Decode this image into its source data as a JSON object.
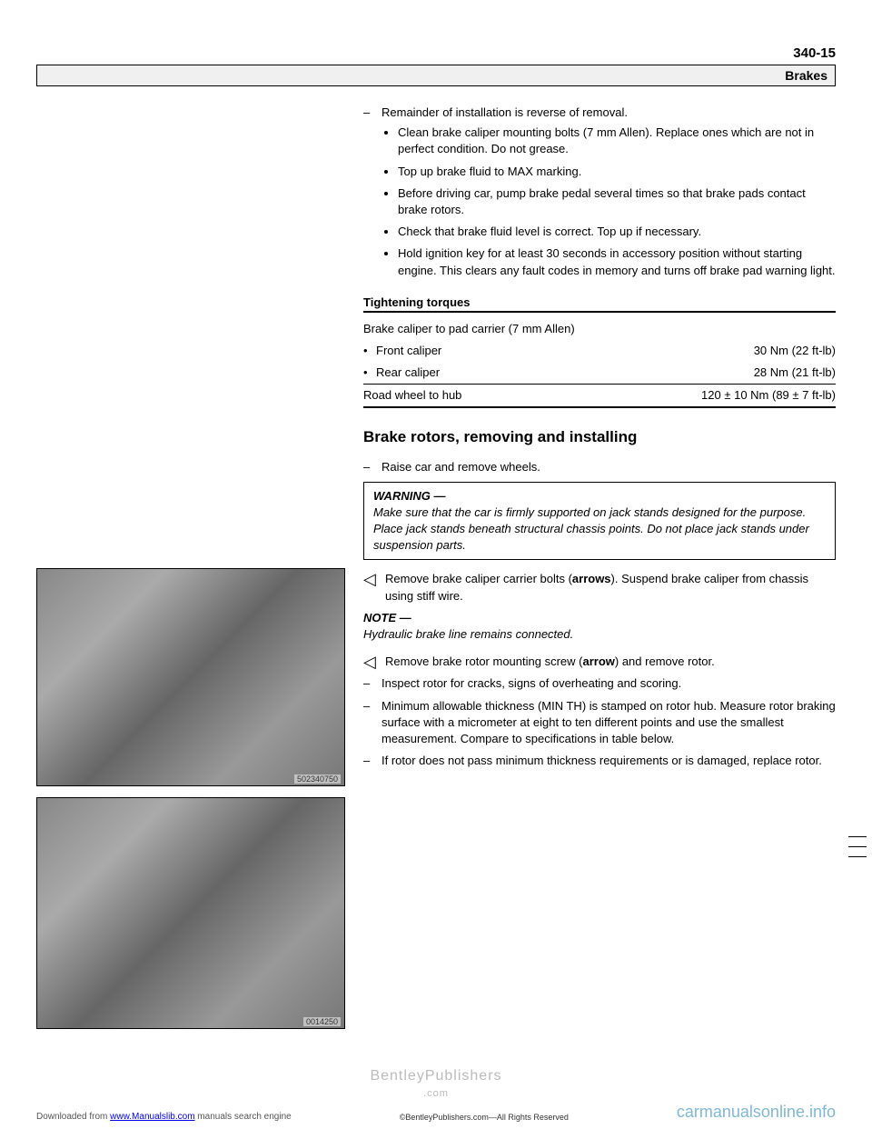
{
  "header": {
    "page_number": "340-15",
    "section_label": "Brakes"
  },
  "install_step": {
    "lead": "Remainder of installation is reverse of removal.",
    "bullets": [
      "Clean brake caliper mounting bolts (7 mm Allen). Replace ones which are not in perfect condition. Do not grease.",
      "Top up brake fluid to MAX marking.",
      "Before driving car, pump brake pedal several times so that brake pads contact brake rotors.",
      "Check that brake fluid level is correct. Top up if necessary.",
      "Hold ignition key for at least 30 seconds in accessory position without starting engine. This clears any fault codes in memory and turns off brake pad warning light."
    ]
  },
  "torques": {
    "heading": "Tightening torques",
    "row1_label": "Brake caliper to pad carrier (7 mm Allen)",
    "front_label": "Front caliper",
    "front_val": "30 Nm (22 ft-lb)",
    "rear_label": "Rear caliper",
    "rear_val": "28 Nm (21 ft-lb)",
    "wheel_label": "Road wheel to hub",
    "wheel_val": "120 ± 10 Nm (89 ± 7 ft-lb)"
  },
  "h2": "Brake rotors, removing and installing",
  "steps": {
    "raise": "Raise car and remove wheels.",
    "warning_label": "WARNING —",
    "warning_text": "Make sure that the car is firmly supported on jack stands designed for the purpose. Place jack stands beneath structural chassis points. Do not place jack stands under suspension parts.",
    "remove_carrier_pre": "Remove brake caliper carrier bolts (",
    "arrows_word": "arrows",
    "remove_carrier_post": "). Suspend brake caliper from chassis using stiff wire.",
    "note_label": "NOTE —",
    "note_text": "Hydraulic brake line remains connected.",
    "remove_rotor_pre": "Remove brake rotor mounting screw (",
    "arrow_word": "arrow",
    "remove_rotor_post": ") and remove rotor.",
    "inspect": "Inspect rotor for cracks, signs of overheating and scoring.",
    "min_th": "Minimum allowable thickness (MIN TH) is stamped on rotor hub. Measure rotor braking surface with a micrometer at eight to ten different points and use the smallest measurement. Compare to specifications in table below.",
    "replace": "If rotor does not pass minimum thickness requirements or is damaged, replace rotor."
  },
  "images": {
    "id1": "502340750",
    "id2": "0014250"
  },
  "footer": {
    "watermark": "BentleyPublishers",
    "watermark_sub": ".com",
    "downloaded_pre": "Downloaded from ",
    "downloaded_link": "www.Manualslib.com",
    "downloaded_post": " manuals search engine",
    "rights": "©BentleyPublishers.com—All Rights Reserved",
    "site": "carmanualsonline.info"
  }
}
